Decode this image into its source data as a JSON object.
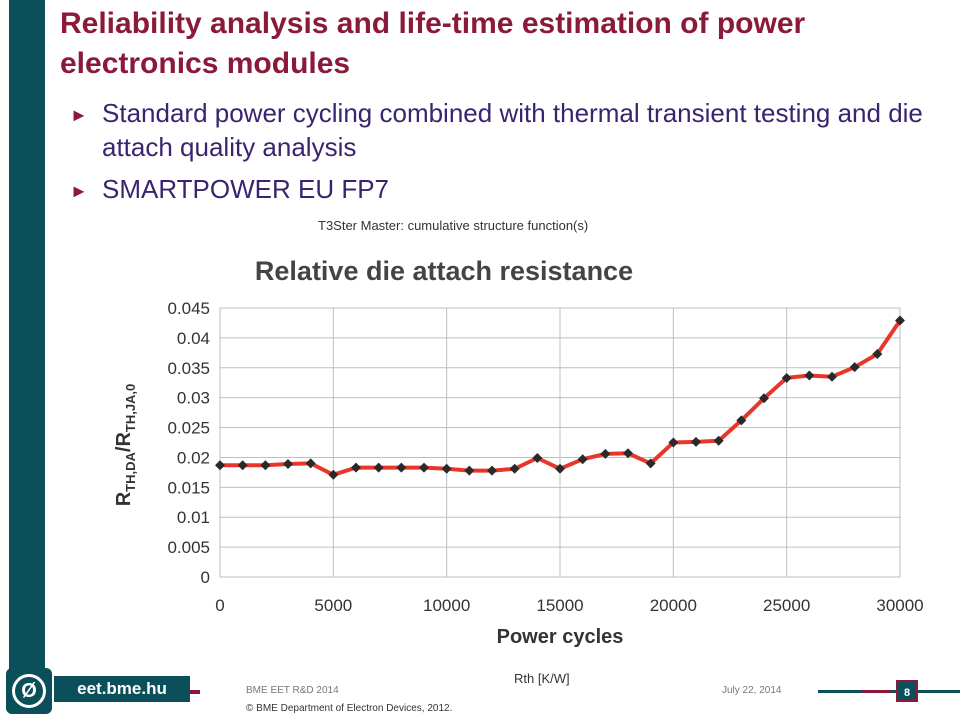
{
  "slide": {
    "title": "Reliability analysis and life-time estimation of power electronics modules",
    "bullets": [
      "Standard power cycling combined with thermal transient testing and die attach quality analysis",
      "SMARTPOWER EU FP7"
    ],
    "bullet_marker": "►"
  },
  "chart_data": {
    "type": "line",
    "overlay_title": "T3Ster Master: cumulative structure function(s)",
    "title": "Relative die attach resistance",
    "xlabel": "Power cycles",
    "ylabel_main": "R",
    "ylabel_sub1": "TH,DA",
    "ylabel_slash": "/R",
    "ylabel_sub2": "TH,JA,0",
    "bottom_label": "Rth  [K/W]",
    "xlim": [
      0,
      30000
    ],
    "ylim": [
      0,
      0.045
    ],
    "xticks": [
      "0",
      "5000",
      "10000",
      "15000",
      "20000",
      "25000",
      "30000"
    ],
    "yticks": [
      "0",
      "0.005",
      "0.01",
      "0.015",
      "0.02",
      "0.025",
      "0.03",
      "0.035",
      "0.04",
      "0.045"
    ],
    "grid": true,
    "colors": {
      "line": "#e8372a",
      "marker": "#2a2a2a",
      "grid": "#bfbfbf"
    },
    "series": [
      {
        "x": [
          0,
          1000,
          2000,
          3000,
          4000,
          5000,
          6000,
          7000,
          8000,
          9000,
          10000,
          11000,
          12000,
          13000,
          14000,
          15000,
          16000,
          17000,
          18000,
          19000,
          20000,
          21000,
          22000,
          23000,
          24000,
          25000,
          26000,
          27000,
          28000,
          29000,
          30000
        ],
        "y": [
          0.0187,
          0.0187,
          0.0187,
          0.0189,
          0.019,
          0.0171,
          0.0183,
          0.0183,
          0.0183,
          0.0183,
          0.0181,
          0.0178,
          0.0178,
          0.0181,
          0.0199,
          0.0181,
          0.0197,
          0.0206,
          0.0207,
          0.019,
          0.0225,
          0.0226,
          0.0228,
          0.0262,
          0.0299,
          0.0333,
          0.0337,
          0.0335,
          0.0351,
          0.0373,
          0.0429
        ]
      }
    ]
  },
  "footer": {
    "logo_glyph": "Ø",
    "site": "eet.bme.hu",
    "event": "BME EET R&D 2014",
    "date": "July 22, 2014",
    "page": "8",
    "copyright": "© BME Department of Electron Devices, 2012."
  }
}
